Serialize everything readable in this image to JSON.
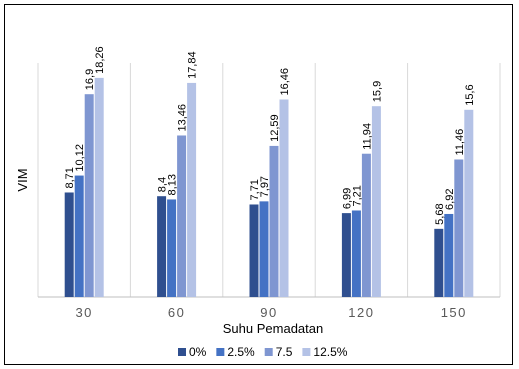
{
  "chart_data": {
    "type": "bar",
    "categories": [
      "30",
      "60",
      "90",
      "120",
      "150"
    ],
    "series": [
      {
        "name": "0%",
        "values": [
          8.71,
          8.4,
          7.71,
          6.99,
          5.68
        ],
        "labels": [
          "8,71",
          "8,4",
          "7,71",
          "6,99",
          "5,68"
        ]
      },
      {
        "name": "2.5%",
        "values": [
          10.12,
          8.13,
          7.97,
          7.21,
          6.92
        ],
        "labels": [
          "10,12",
          "8,13",
          "7,97",
          "7,21",
          "6,92"
        ]
      },
      {
        "name": "7.5",
        "values": [
          16.9,
          13.46,
          12.59,
          11.94,
          11.46
        ],
        "labels": [
          "16,9",
          "13,46",
          "12,59",
          "11,94",
          "11,46"
        ]
      },
      {
        "name": "12.5%",
        "values": [
          18.26,
          17.84,
          16.46,
          15.9,
          15.6
        ],
        "labels": [
          "18,26",
          "17,84",
          "16,46",
          "15,9",
          "15,6"
        ]
      }
    ],
    "colors": [
      "#2f4f8f",
      "#4472c4",
      "#7f96d1",
      "#b4c2e6"
    ],
    "xlabel": "Suhu Pemadatan",
    "ylabel": "VIM",
    "ylim": [
      0,
      19.5
    ],
    "grid": "vertical category separators",
    "legend": "bottom-center"
  }
}
